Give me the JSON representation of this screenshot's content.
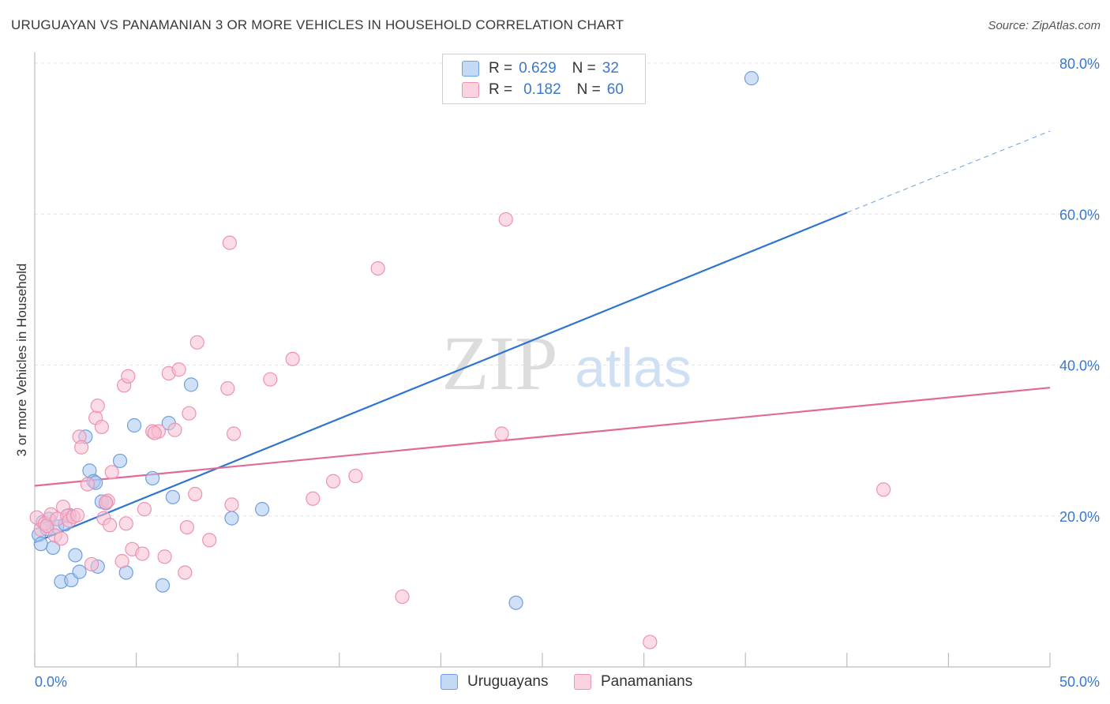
{
  "header": {
    "title": "URUGUAYAN VS PANAMANIAN 3 OR MORE VEHICLES IN HOUSEHOLD CORRELATION CHART",
    "source": "Source: ZipAtlas.com"
  },
  "watermark": {
    "zip": "ZIP",
    "atlas": "atlas"
  },
  "legend": {
    "uruguayans": {
      "r_label": "R =",
      "r_value": "0.629",
      "n_label": "N =",
      "n_value": "32"
    },
    "panamanians": {
      "r_label": "R =",
      "r_value": "0.182",
      "n_label": "N =",
      "n_value": "60"
    }
  },
  "bottom_legend": {
    "uruguayans": "Uruguayans",
    "panamanians": "Panamanians"
  },
  "colors": {
    "uruguayans_fill": "#aac8f0",
    "uruguayans_stroke": "#6f9fe0",
    "uruguayans_line": "#2f74d0",
    "panamanians_fill": "#f8c0d2",
    "panamanians_stroke": "#ee92b2",
    "panamanians_line": "#e06a98",
    "tick_label": "#3a78c9",
    "grid": "#e4e4e4"
  },
  "chart_data": {
    "type": "scatter",
    "title": "URUGUAYAN VS PANAMANIAN 3 OR MORE VEHICLES IN HOUSEHOLD CORRELATION CHART",
    "xlabel": "",
    "ylabel": "3 or more Vehicles in Household",
    "xlim": [
      0,
      50
    ],
    "ylim": [
      0,
      80
    ],
    "x_tick_labels": [
      "0.0%",
      "50.0%"
    ],
    "y_ticks": [
      20,
      40,
      60,
      80
    ],
    "y_tick_labels": [
      "20.0%",
      "40.0%",
      "60.0%",
      "80.0%"
    ],
    "grid": true,
    "legend_placement": "top-center",
    "series": [
      {
        "name": "Uruguayans",
        "r": 0.629,
        "n": 32,
        "points": [
          [
            0.2,
            17.5
          ],
          [
            0.4,
            19.2
          ],
          [
            0.7,
            19.6
          ],
          [
            0.9,
            15.8
          ],
          [
            1.1,
            18.6
          ],
          [
            1.3,
            11.3
          ],
          [
            1.5,
            18.9
          ],
          [
            1.7,
            20.1
          ],
          [
            1.8,
            11.5
          ],
          [
            2.0,
            14.8
          ],
          [
            2.2,
            12.6
          ],
          [
            2.5,
            30.5
          ],
          [
            2.7,
            26.0
          ],
          [
            2.9,
            24.6
          ],
          [
            3.1,
            13.3
          ],
          [
            3.3,
            21.9
          ],
          [
            3.5,
            21.7
          ],
          [
            4.2,
            27.3
          ],
          [
            4.5,
            12.5
          ],
          [
            4.9,
            32.0
          ],
          [
            5.8,
            25.0
          ],
          [
            6.3,
            10.8
          ],
          [
            6.6,
            32.3
          ],
          [
            6.8,
            22.5
          ],
          [
            7.7,
            37.4
          ],
          [
            9.7,
            19.7
          ],
          [
            11.2,
            20.9
          ],
          [
            23.7,
            8.5
          ],
          [
            35.3,
            78.0
          ],
          [
            0.3,
            16.3
          ],
          [
            0.6,
            18.3
          ],
          [
            3.0,
            24.4
          ]
        ],
        "trend": {
          "x": [
            0,
            40
          ],
          "y": [
            16.5,
            60.2
          ]
        },
        "trend_extension": {
          "x": [
            40,
            50
          ],
          "y": [
            60.2,
            71.0
          ]
        }
      },
      {
        "name": "Panamanians",
        "r": 0.182,
        "n": 60,
        "points": [
          [
            0.1,
            19.8
          ],
          [
            0.3,
            18.2
          ],
          [
            0.5,
            19.0
          ],
          [
            0.6,
            18.7
          ],
          [
            0.8,
            20.2
          ],
          [
            1.0,
            17.4
          ],
          [
            1.1,
            19.6
          ],
          [
            1.3,
            17.0
          ],
          [
            1.4,
            21.2
          ],
          [
            1.6,
            20.0
          ],
          [
            1.7,
            19.4
          ],
          [
            1.9,
            19.9
          ],
          [
            2.1,
            20.1
          ],
          [
            2.2,
            30.5
          ],
          [
            2.3,
            29.1
          ],
          [
            2.6,
            24.2
          ],
          [
            2.8,
            13.6
          ],
          [
            3.0,
            33.0
          ],
          [
            3.1,
            34.6
          ],
          [
            3.3,
            31.8
          ],
          [
            3.4,
            19.7
          ],
          [
            3.6,
            22.0
          ],
          [
            3.7,
            18.8
          ],
          [
            3.8,
            25.8
          ],
          [
            4.3,
            14.0
          ],
          [
            4.4,
            37.3
          ],
          [
            4.5,
            19.0
          ],
          [
            4.6,
            38.5
          ],
          [
            4.8,
            15.6
          ],
          [
            5.3,
            15.0
          ],
          [
            5.4,
            20.9
          ],
          [
            5.8,
            31.2
          ],
          [
            6.1,
            31.2
          ],
          [
            6.4,
            14.6
          ],
          [
            6.6,
            38.9
          ],
          [
            6.9,
            31.4
          ],
          [
            7.1,
            39.4
          ],
          [
            7.4,
            12.5
          ],
          [
            7.5,
            18.5
          ],
          [
            7.6,
            33.6
          ],
          [
            7.9,
            22.9
          ],
          [
            8.0,
            43.0
          ],
          [
            8.6,
            16.8
          ],
          [
            9.5,
            36.9
          ],
          [
            9.7,
            21.5
          ],
          [
            9.8,
            30.9
          ],
          [
            9.6,
            56.2
          ],
          [
            11.6,
            38.1
          ],
          [
            12.7,
            40.8
          ],
          [
            13.7,
            22.3
          ],
          [
            14.7,
            24.6
          ],
          [
            15.8,
            25.3
          ],
          [
            16.9,
            52.8
          ],
          [
            18.1,
            9.3
          ],
          [
            23.0,
            30.9
          ],
          [
            23.2,
            59.3
          ],
          [
            30.3,
            3.3
          ],
          [
            41.8,
            23.5
          ],
          [
            3.5,
            21.8
          ],
          [
            5.9,
            31.0
          ]
        ],
        "trend": {
          "x": [
            0,
            50
          ],
          "y": [
            24.0,
            37.0
          ]
        }
      }
    ]
  }
}
